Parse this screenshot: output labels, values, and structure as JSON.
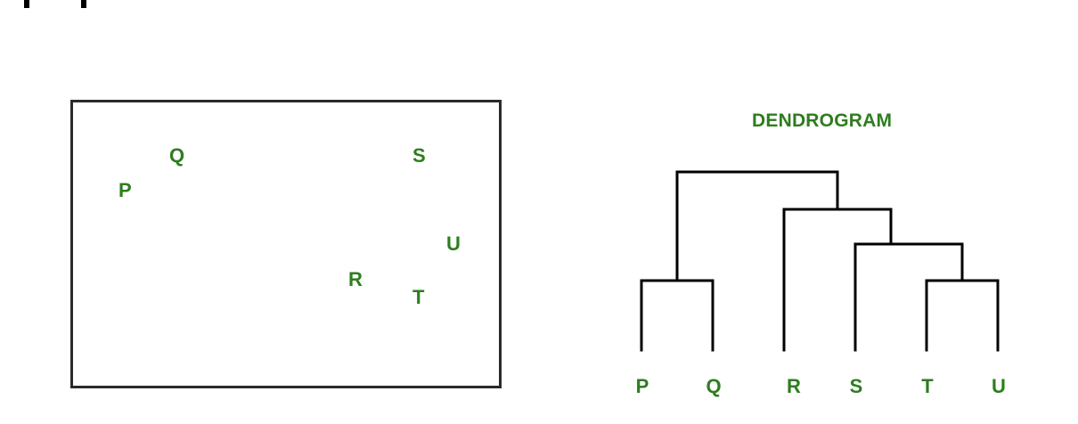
{
  "scatter": {
    "points": [
      {
        "label": "P"
      },
      {
        "label": "Q"
      },
      {
        "label": "S"
      },
      {
        "label": "U"
      },
      {
        "label": "R"
      },
      {
        "label": "T"
      }
    ]
  },
  "dendrogram": {
    "title": "DENDROGRAM",
    "leaves": [
      "P",
      "Q",
      "R",
      "S",
      "T",
      "U"
    ],
    "merges": [
      [
        "P",
        "Q"
      ],
      [
        "T",
        "U"
      ],
      [
        "S",
        "TU"
      ],
      [
        "R",
        "STU"
      ],
      [
        "PQ",
        "RSTU"
      ]
    ]
  },
  "colors": {
    "label": "#2e7d1f",
    "line": "#000000"
  }
}
